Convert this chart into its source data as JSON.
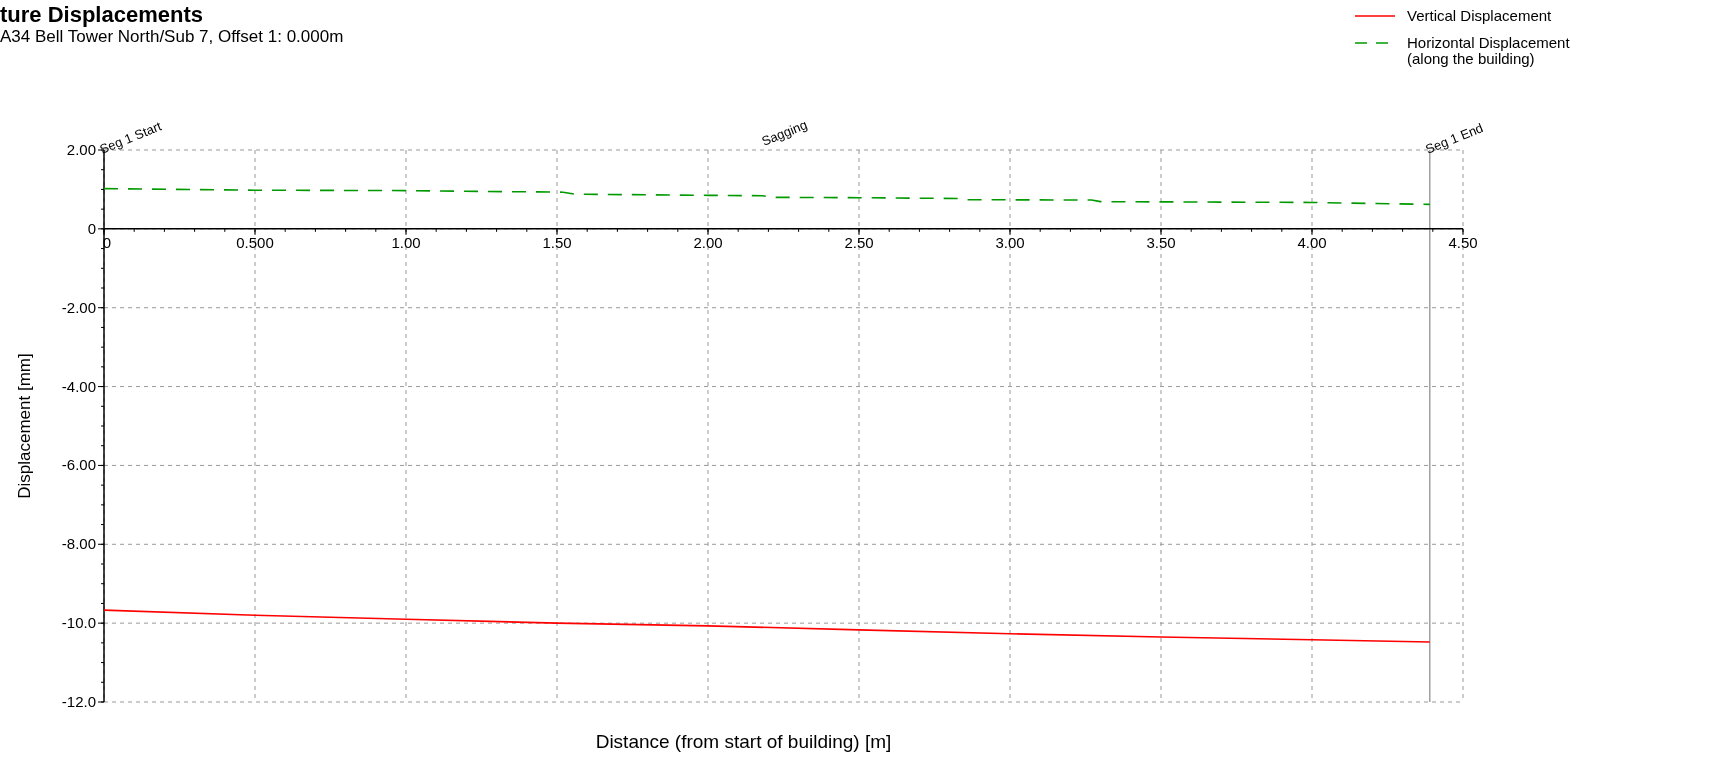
{
  "chart_data": {
    "type": "line",
    "title": "ture Displacements",
    "subtitle": "A34 Bell Tower North/Sub 7, Offset 1: 0.000m",
    "xlabel": "Distance (from start of building) [m]",
    "ylabel": "Displacement [mm]",
    "series": [
      {
        "name": "Vertical Displacement",
        "color": "#ff0000",
        "line_style": "solid",
        "x": [
          0,
          0.5,
          1.0,
          1.5,
          2.0,
          2.5,
          3.0,
          3.5,
          4.0,
          4.39
        ],
        "values": [
          -9.67,
          -9.8,
          -9.9,
          -10.0,
          -10.07,
          -10.17,
          -10.27,
          -10.35,
          -10.42,
          -10.48
        ]
      },
      {
        "name": "Horizontal Displacement\n(along the building)",
        "color": "#009900",
        "line_style": "dashed",
        "x": [
          0,
          0.5,
          1.0,
          1.52,
          1.56,
          2.0,
          2.18,
          2.21,
          2.5,
          2.83,
          2.86,
          3.27,
          3.3,
          4.0,
          4.39
        ],
        "values": [
          1.02,
          0.98,
          0.97,
          0.93,
          0.88,
          0.85,
          0.84,
          0.8,
          0.79,
          0.77,
          0.74,
          0.73,
          0.69,
          0.67,
          0.62
        ]
      }
    ],
    "xlim": [
      0,
      4.5
    ],
    "ylim": [
      -12,
      2
    ],
    "xticks": [
      {
        "value": 0,
        "label": "0"
      },
      {
        "value": 0.5,
        "label": "0.500"
      },
      {
        "value": 1,
        "label": "1.00"
      },
      {
        "value": 1.5,
        "label": "1.50"
      },
      {
        "value": 2,
        "label": "2.00"
      },
      {
        "value": 2.5,
        "label": "2.50"
      },
      {
        "value": 3,
        "label": "3.00"
      },
      {
        "value": 3.5,
        "label": "3.50"
      },
      {
        "value": 4,
        "label": "4.00"
      },
      {
        "value": 4.5,
        "label": "4.50"
      }
    ],
    "yticks": [
      {
        "value": 2,
        "label": "2.00"
      },
      {
        "value": 0,
        "label": "0"
      },
      {
        "value": -2,
        "label": "-2.00"
      },
      {
        "value": -4,
        "label": "-4.00"
      },
      {
        "value": -6,
        "label": "-6.00"
      },
      {
        "value": -8,
        "label": "-8.00"
      },
      {
        "value": -10,
        "label": "-10.0"
      },
      {
        "value": -12,
        "label": "-12.0"
      }
    ],
    "ref_lines": [
      {
        "axis": "x",
        "value": 4.39,
        "label": "Seg 1 End",
        "color": "#a0a0a0"
      }
    ],
    "annotations": [
      "Seg 1 Start",
      "Sagging"
    ],
    "grid": true,
    "legend": "top right"
  }
}
